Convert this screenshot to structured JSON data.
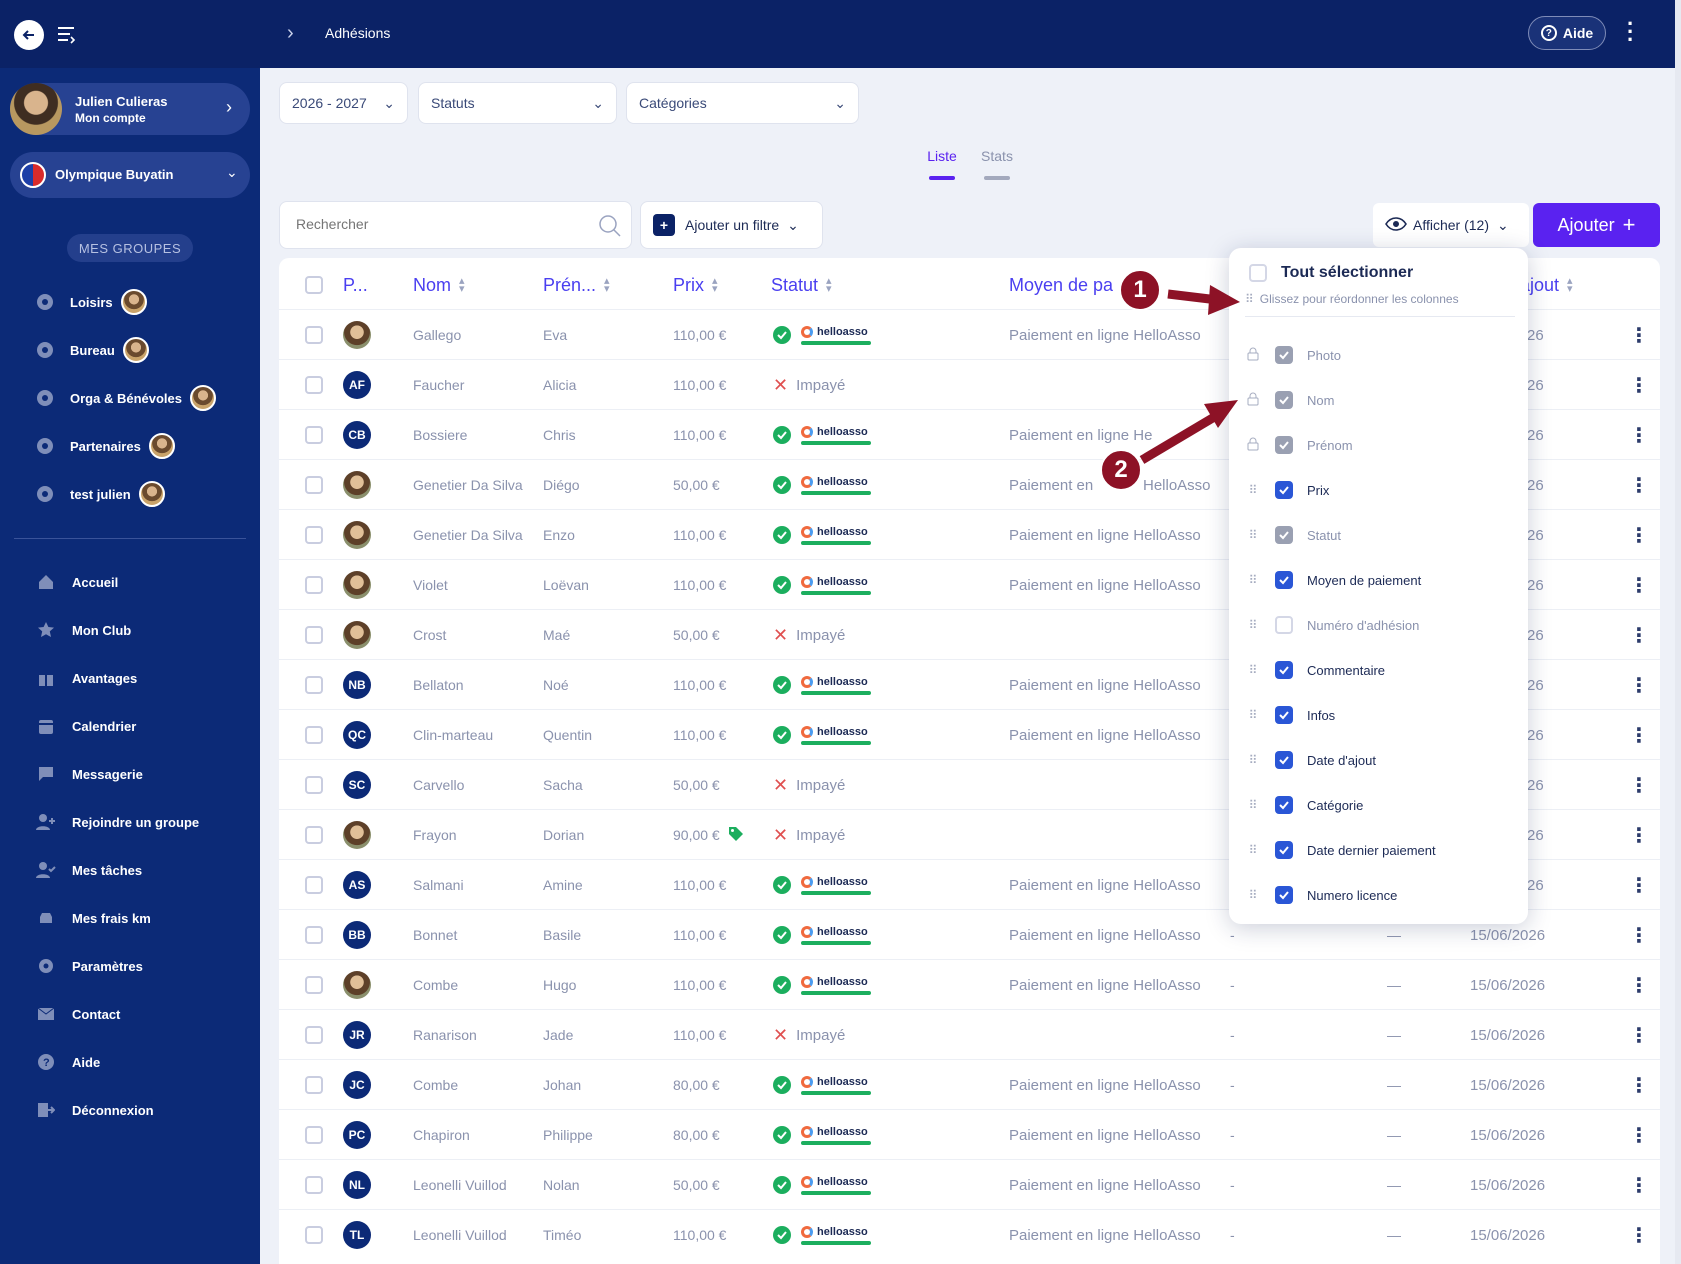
{
  "header": {
    "breadcrumb": "Adhésions",
    "help_label": "Aide"
  },
  "sidebar": {
    "user": {
      "name": "Julien Culieras",
      "sub": "Mon compte"
    },
    "club": "Olympique Buyatin",
    "groups_title": "MES GROUPES",
    "groups": [
      {
        "label": "Loisirs"
      },
      {
        "label": "Bureau"
      },
      {
        "label": "Orga & Bénévoles"
      },
      {
        "label": "Partenaires"
      },
      {
        "label": "test julien"
      }
    ],
    "nav": [
      {
        "label": "Accueil",
        "icon": "home-icon"
      },
      {
        "label": "Mon Club",
        "icon": "star-icon"
      },
      {
        "label": "Avantages",
        "icon": "gift-icon"
      },
      {
        "label": "Calendrier",
        "icon": "calendar-icon"
      },
      {
        "label": "Messagerie",
        "icon": "message-icon"
      },
      {
        "label": "Rejoindre un groupe",
        "icon": "user-add-icon"
      },
      {
        "label": "Mes tâches",
        "icon": "user-check-icon"
      },
      {
        "label": "Mes frais km",
        "icon": "car-icon"
      },
      {
        "label": "Paramètres",
        "icon": "gear-icon"
      },
      {
        "label": "Contact",
        "icon": "mail-icon"
      },
      {
        "label": "Aide",
        "icon": "help-icon"
      },
      {
        "label": "Déconnexion",
        "icon": "logout-icon"
      }
    ]
  },
  "filters": {
    "season": "2026 - 2027",
    "status": "Statuts",
    "category": "Catégories"
  },
  "tabs": {
    "list": "Liste",
    "stats": "Stats"
  },
  "toolbar": {
    "search_placeholder": "Rechercher",
    "add_filter": "Ajouter un filtre",
    "display": "Afficher (12)",
    "add": "Ajouter"
  },
  "table": {
    "headers": {
      "photo": "P...",
      "nom": "Nom",
      "prenom": "Prén...",
      "prix": "Prix",
      "statut": "Statut",
      "moyen": "Moyen de pa",
      "ajout": "ajout"
    },
    "rows": [
      {
        "init": "",
        "nom": "Gallego",
        "prenom": "Eva",
        "prix": "110,00 €",
        "paid": true,
        "moyen": "Paiement en ligne HelloAsso",
        "extra": "",
        "dash": "",
        "date": "26"
      },
      {
        "init": "AF",
        "nom": "Faucher",
        "prenom": "Alicia",
        "prix": "110,00 €",
        "paid": false,
        "moyen": "",
        "extra": "",
        "dash": "",
        "date": "26"
      },
      {
        "init": "CB",
        "nom": "Bossiere",
        "prenom": "Chris",
        "prix": "110,00 €",
        "paid": true,
        "moyen": "Paiement en ligne He",
        "extra": "",
        "dash": "",
        "date": "26"
      },
      {
        "init": "",
        "nom": "Genetier Da Silva",
        "prenom": "Diégo",
        "prix": "50,00 €",
        "paid": true,
        "moyen": "Paiement en",
        "moyen2": "HelloAsso",
        "extra": "",
        "dash": "",
        "date": "26"
      },
      {
        "init": "",
        "nom": "Genetier Da Silva",
        "prenom": "Enzo",
        "prix": "110,00 €",
        "paid": true,
        "moyen": "Paiement en ligne HelloAsso",
        "extra": "",
        "dash": "",
        "date": "26"
      },
      {
        "init": "",
        "nom": "Violet",
        "prenom": "Loëvan",
        "prix": "110,00 €",
        "paid": true,
        "moyen": "Paiement en ligne HelloAsso",
        "extra": "",
        "dash": "",
        "date": "26"
      },
      {
        "init": "",
        "nom": "Crost",
        "prenom": "Maé",
        "prix": "50,00 €",
        "paid": false,
        "moyen": "",
        "extra": "",
        "dash": "",
        "date": "26"
      },
      {
        "init": "NB",
        "nom": "Bellaton",
        "prenom": "Noé",
        "prix": "110,00 €",
        "paid": true,
        "moyen": "Paiement en ligne HelloAsso",
        "extra": "",
        "dash": "",
        "date": "26"
      },
      {
        "init": "QC",
        "nom": "Clin-marteau",
        "prenom": "Quentin",
        "prix": "110,00 €",
        "paid": true,
        "moyen": "Paiement en ligne HelloAsso",
        "extra": "",
        "dash": "",
        "date": "26"
      },
      {
        "init": "SC",
        "nom": "Carvello",
        "prenom": "Sacha",
        "prix": "50,00 €",
        "paid": false,
        "moyen": "",
        "extra": "",
        "dash": "",
        "date": "26"
      },
      {
        "init": "",
        "nom": "Frayon",
        "prenom": "Dorian",
        "prix": "90,00 €",
        "tag": true,
        "paid": false,
        "moyen": "",
        "extra": "",
        "dash": "",
        "date": "26"
      },
      {
        "init": "AS",
        "nom": "Salmani",
        "prenom": "Amine",
        "prix": "110,00 €",
        "paid": true,
        "moyen": "Paiement en ligne HelloAsso",
        "extra": "",
        "dash": "",
        "date": "26"
      },
      {
        "init": "BB",
        "nom": "Bonnet",
        "prenom": "Basile",
        "prix": "110,00 €",
        "paid": true,
        "moyen": "Paiement en ligne HelloAsso",
        "extra": "-",
        "dash": "—",
        "date": "15/06/2026"
      },
      {
        "init": "",
        "nom": "Combe",
        "prenom": "Hugo",
        "prix": "110,00 €",
        "paid": true,
        "moyen": "Paiement en ligne HelloAsso",
        "extra": "-",
        "dash": "—",
        "date": "15/06/2026"
      },
      {
        "init": "JR",
        "nom": "Ranarison",
        "prenom": "Jade",
        "prix": "110,00 €",
        "paid": false,
        "moyen": "",
        "extra": "-",
        "dash": "—",
        "date": "15/06/2026"
      },
      {
        "init": "JC",
        "nom": "Combe",
        "prenom": "Johan",
        "prix": "80,00 €",
        "paid": true,
        "moyen": "Paiement en ligne HelloAsso",
        "extra": "-",
        "dash": "—",
        "date": "15/06/2026"
      },
      {
        "init": "PC",
        "nom": "Chapiron",
        "prenom": "Philippe",
        "prix": "80,00 €",
        "paid": true,
        "moyen": "Paiement en ligne HelloAsso",
        "extra": "-",
        "dash": "—",
        "date": "15/06/2026"
      },
      {
        "init": "NL",
        "nom": "Leonelli Vuillod",
        "prenom": "Nolan",
        "prix": "50,00 €",
        "paid": true,
        "moyen": "Paiement en ligne HelloAsso",
        "extra": "-",
        "dash": "—",
        "date": "15/06/2026"
      },
      {
        "init": "TL",
        "nom": "Leonelli Vuillod",
        "prenom": "Timéo",
        "prix": "110,00 €",
        "paid": true,
        "moyen": "Paiement en ligne HelloAsso",
        "extra": "-",
        "dash": "—",
        "date": "15/06/2026"
      }
    ],
    "paid_label": "helloasso",
    "unpaid_label": "Impayé"
  },
  "columns_popup": {
    "select_all": "Tout sélectionner",
    "hint": "Glissez pour réordonner les colonnes",
    "items": [
      {
        "label": "Photo",
        "state": "locked"
      },
      {
        "label": "Nom",
        "state": "locked"
      },
      {
        "label": "Prénom",
        "state": "locked"
      },
      {
        "label": "Prix",
        "state": "on"
      },
      {
        "label": "Statut",
        "state": "gray"
      },
      {
        "label": "Moyen de paiement",
        "state": "on"
      },
      {
        "label": "Numéro d'adhésion",
        "state": "off"
      },
      {
        "label": "Commentaire",
        "state": "on"
      },
      {
        "label": "Infos",
        "state": "on"
      },
      {
        "label": "Date d'ajout",
        "state": "on"
      },
      {
        "label": "Catégorie",
        "state": "on"
      },
      {
        "label": "Date dernier paiement",
        "state": "on"
      },
      {
        "label": "Numero licence",
        "state": "on"
      }
    ]
  },
  "annotations": {
    "badge1": "1",
    "badge2": "2"
  },
  "colors": {
    "topbar": "#0b2266",
    "sidebar": "#0c2a77",
    "accent": "#5a22f0",
    "success": "#1cae5e",
    "danger": "#e05050",
    "annotation": "#8d1226"
  }
}
